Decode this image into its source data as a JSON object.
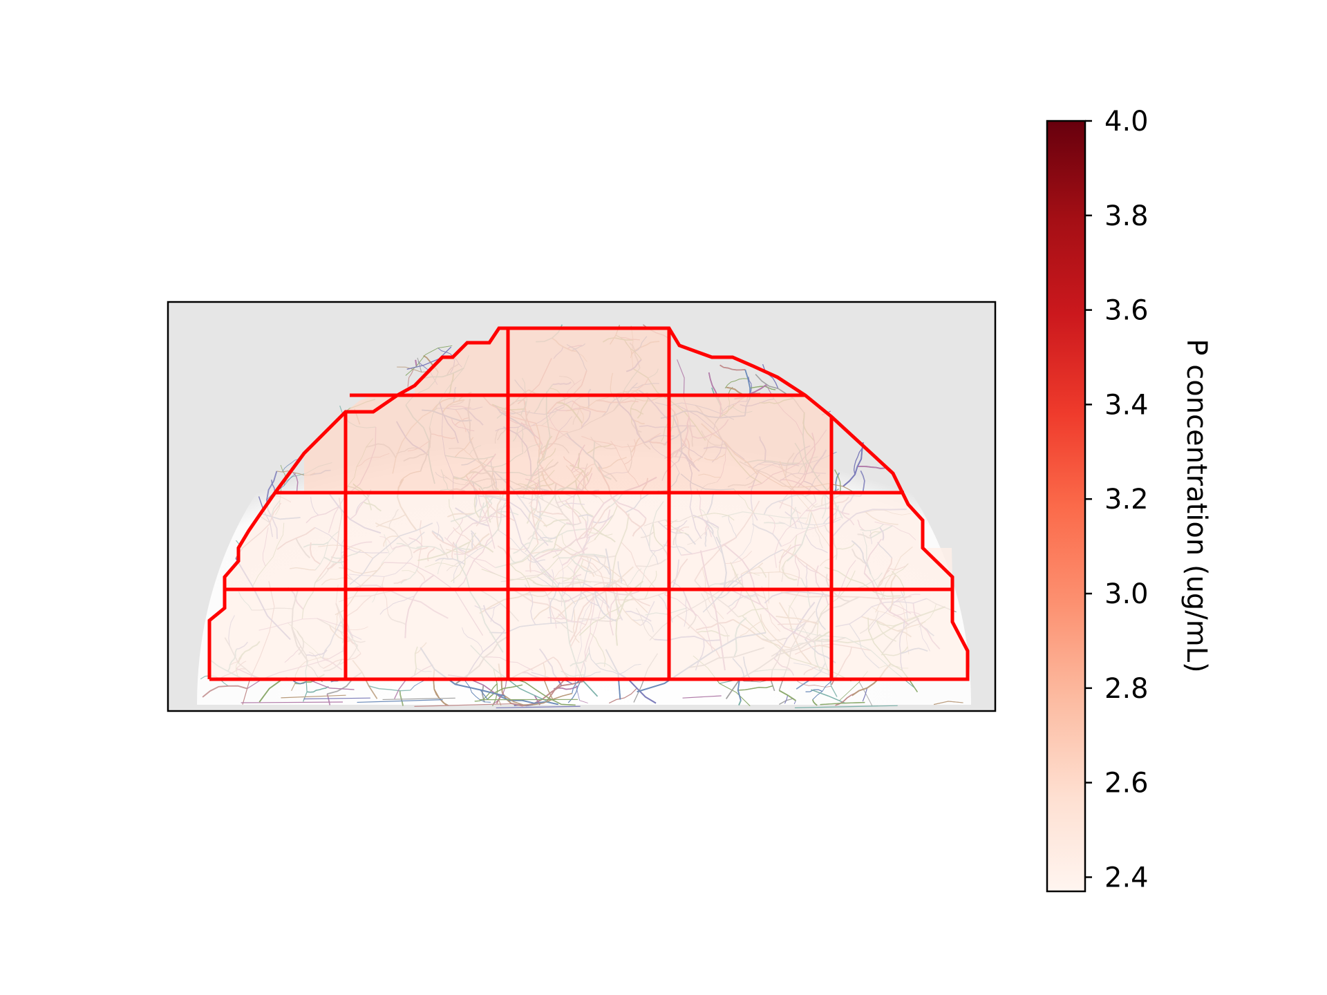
{
  "chart_data": {
    "type": "heatmap",
    "description_of_cells": "grid cells over a half-disc root-system image, colored by P concentration",
    "grid_rows": [
      {
        "row": 1,
        "values": [
          2.6,
          2.6
        ]
      },
      {
        "row": 2,
        "values": [
          2.6,
          2.6,
          2.6,
          2.6
        ]
      },
      {
        "row": 3,
        "values": [
          2.42,
          2.42,
          2.42,
          2.42,
          2.42
        ]
      },
      {
        "row": 4,
        "values": [
          2.41,
          2.41,
          2.41,
          2.41,
          2.41
        ]
      }
    ],
    "colorbar": {
      "label": "P concentration (ug/mL)",
      "min": 2.37,
      "max": 4.0,
      "ticks": [
        "2.4",
        "2.6",
        "2.8",
        "3.0",
        "3.2",
        "3.4",
        "3.6",
        "3.8",
        "4.0"
      ],
      "tick_values": [
        2.4,
        2.6,
        2.8,
        3.0,
        3.2,
        3.4,
        3.6,
        3.8,
        4.0
      ],
      "colormap": "Reds"
    },
    "colors": {
      "grid_outline": "#ff0000",
      "panel_background": "#e6e6e6"
    }
  }
}
